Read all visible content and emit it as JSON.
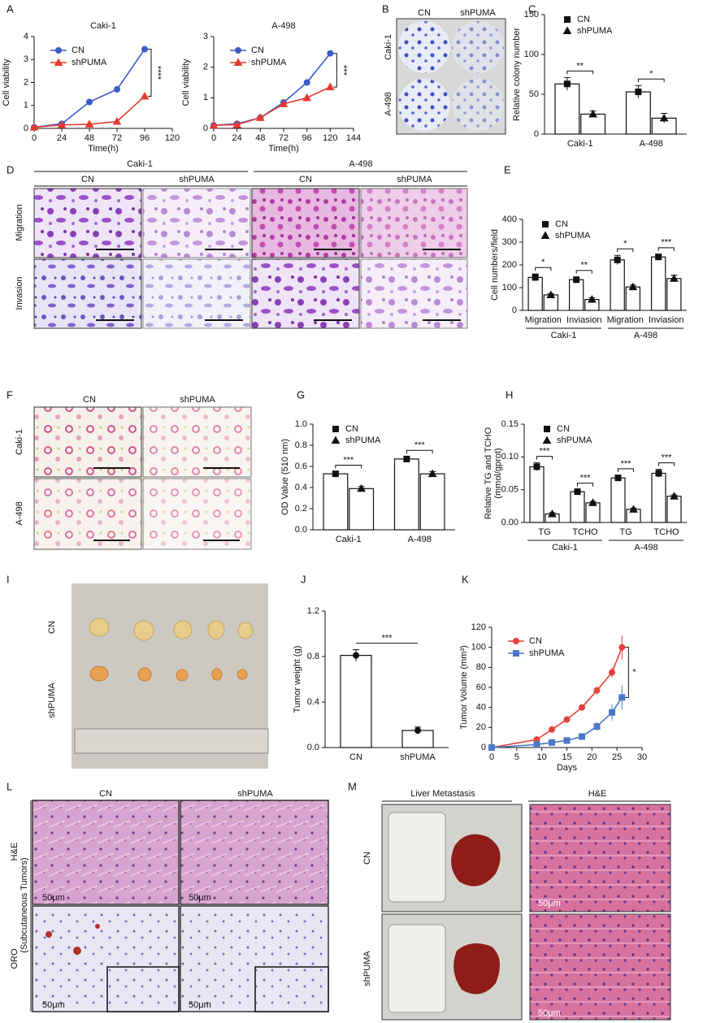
{
  "figure": {
    "panel_letters": [
      "A",
      "B",
      "C",
      "D",
      "E",
      "F",
      "G",
      "H",
      "I",
      "J",
      "K",
      "L",
      "M"
    ],
    "B": {
      "columns": [
        "CN",
        "shPUMA"
      ],
      "rows": [
        "Caki-1",
        "A-498"
      ]
    },
    "D": {
      "groups": [
        "Caki-1",
        "A-498"
      ],
      "columns": [
        "CN",
        "shPUMA",
        "CN",
        "shPUMA"
      ],
      "rows": [
        "Migration",
        "Invasion"
      ]
    },
    "F": {
      "columns": [
        "CN",
        "shPUMA"
      ],
      "rows": [
        "Caki-1",
        "A-498"
      ]
    },
    "I": {
      "rows": [
        "CN",
        "shPUMA"
      ]
    },
    "L": {
      "columns": [
        "CN",
        "shPUMA"
      ],
      "rows": [
        "H&E",
        "ORO"
      ],
      "side_label": "(Subcutaneous Tumors)",
      "scale_bars": [
        "50μm",
        "50μm",
        "50μm",
        "50μm"
      ]
    },
    "M": {
      "columns": [
        "Liver Metastasis",
        "H&E"
      ],
      "rows": [
        "CN",
        "shPUMA"
      ],
      "scale_bars": [
        "50μm",
        "50μm"
      ]
    }
  },
  "chart_data": [
    {
      "type": "line",
      "title": "Caki-1",
      "x_label": "Time(h)",
      "y_label": "Cell viability",
      "xlim": [
        0,
        120
      ],
      "xticks": [
        0,
        24,
        48,
        72,
        96,
        120
      ],
      "ylim": [
        0,
        4
      ],
      "yticks": [
        0,
        1,
        2,
        3,
        4
      ],
      "x": [
        0,
        24,
        48,
        72,
        96
      ],
      "series": [
        {
          "name": "CN",
          "color": "#3a5bc7",
          "marker": "circle",
          "values": [
            0.05,
            0.2,
            1.15,
            1.7,
            3.45
          ],
          "errors": [
            0.02,
            0.03,
            0.12,
            0.15,
            0.05
          ]
        },
        {
          "name": "shPUMA",
          "color": "#e53a2f",
          "marker": "triangle",
          "values": [
            0.05,
            0.15,
            0.18,
            0.3,
            1.4
          ],
          "errors": [
            0.02,
            0.02,
            0.03,
            0.05,
            0.05
          ]
        }
      ],
      "annotation": "****",
      "legend": "upper left"
    },
    {
      "type": "line",
      "title": "A-498",
      "x_label": "Time(h)",
      "y_label": "Cell viability",
      "xlim": [
        0,
        144
      ],
      "xticks": [
        0,
        24,
        48,
        72,
        96,
        120,
        144
      ],
      "ylim": [
        0,
        3
      ],
      "yticks": [
        0,
        1,
        2,
        3
      ],
      "x": [
        0,
        24,
        48,
        72,
        96,
        120
      ],
      "series": [
        {
          "name": "CN",
          "color": "#3a5bc7",
          "marker": "circle",
          "values": [
            0.1,
            0.15,
            0.35,
            0.85,
            1.5,
            2.45
          ],
          "errors": [
            0.02,
            0.03,
            0.04,
            0.05,
            0.05,
            0.08
          ]
        },
        {
          "name": "shPUMA",
          "color": "#e53a2f",
          "marker": "triangle",
          "values": [
            0.1,
            0.12,
            0.35,
            0.8,
            1.0,
            1.35
          ],
          "errors": [
            0.02,
            0.02,
            0.04,
            0.04,
            0.04,
            0.08
          ]
        }
      ],
      "annotation": "***",
      "legend": "upper left"
    },
    {
      "type": "bar",
      "y_label": "Relative colony number",
      "categories": [
        "Caki-1",
        "A-498"
      ],
      "ylim": [
        0,
        150
      ],
      "yticks": [
        0,
        50,
        100,
        150
      ],
      "series": [
        {
          "name": "CN",
          "color": "#ffffff",
          "marker": "square",
          "values": [
            63,
            53
          ],
          "errors": [
            8,
            8
          ]
        },
        {
          "name": "shPUMA",
          "color": "#ffffff",
          "marker": "triangle",
          "values": [
            25,
            20
          ],
          "errors": [
            4,
            6
          ]
        }
      ],
      "annotations": [
        "**",
        "*"
      ],
      "legend": "upper left"
    },
    {
      "type": "bar",
      "y_label": "Cell numbers/field",
      "categories": [
        "Migration",
        "Inviasion",
        "Migration",
        "Inviasion"
      ],
      "group_labels": [
        "Caki-1",
        "A-498"
      ],
      "ylim": [
        0,
        400
      ],
      "yticks": [
        0,
        100,
        200,
        300,
        400
      ],
      "series": [
        {
          "name": "CN",
          "color": "#ffffff",
          "marker": "square",
          "values": [
            145,
            135,
            222,
            235
          ],
          "errors": [
            15,
            12,
            20,
            12
          ]
        },
        {
          "name": "shPUMA",
          "color": "#ffffff",
          "marker": "triangle",
          "values": [
            68,
            48,
            103,
            140
          ],
          "errors": [
            5,
            8,
            8,
            15
          ]
        }
      ],
      "annotations": [
        "*",
        "**",
        "*",
        "***"
      ],
      "legend": "upper left"
    },
    {
      "type": "bar",
      "y_label": "OD Value (510 nm)",
      "categories": [
        "Caki-1",
        "A-498"
      ],
      "ylim": [
        0,
        1
      ],
      "yticks": [
        {
          "value": 0,
          "label": "0.0"
        },
        0.2,
        0.4,
        0.6,
        0.8,
        {
          "value": 1,
          "label": "1.0"
        }
      ],
      "series": [
        {
          "name": "CN",
          "color": "#ffffff",
          "marker": "square",
          "values": [
            0.53,
            0.67
          ],
          "errors": [
            0.02,
            0.02
          ]
        },
        {
          "name": "shPUMA",
          "color": "#ffffff",
          "marker": "triangle",
          "values": [
            0.39,
            0.53
          ],
          "errors": [
            0.02,
            0.02
          ]
        }
      ],
      "annotations": [
        "***",
        "***"
      ],
      "legend": "upper left"
    },
    {
      "type": "bar",
      "y_label": [
        "Relative TG and TCHO",
        "(mmol/gprot)"
      ],
      "categories": [
        "TG",
        "TCHO",
        "TG",
        "TCHO"
      ],
      "group_labels": [
        "Caki-1",
        "A-498"
      ],
      "ylim": [
        0,
        0.15
      ],
      "yticks": [
        {
          "value": 0,
          "label": "0.00"
        },
        0.05,
        {
          "value": 0.1,
          "label": "0.10"
        },
        0.15
      ],
      "series": [
        {
          "name": "CN",
          "color": "#ffffff",
          "marker": "square",
          "values": [
            0.085,
            0.047,
            0.068,
            0.075
          ],
          "errors": [
            0.006,
            0.003,
            0.004,
            0.006
          ]
        },
        {
          "name": "shPUMA",
          "color": "#ffffff",
          "marker": "triangle",
          "values": [
            0.013,
            0.03,
            0.02,
            0.04
          ],
          "errors": [
            0.002,
            0.002,
            0.002,
            0.002
          ]
        }
      ],
      "annotations": [
        "***",
        "***",
        "***",
        "***"
      ],
      "legend": "upper left"
    },
    {
      "type": "bar",
      "y_label": "Tumor weight (g)",
      "categories": [
        "CN",
        "shPUMA"
      ],
      "ylim": [
        0,
        1.2
      ],
      "yticks": [
        {
          "value": 0,
          "label": "0.0"
        },
        0.4,
        0.8,
        1.2
      ],
      "values": [
        0.81,
        0.15
      ],
      "errors": [
        0.05,
        0.03
      ],
      "color": "#ffffff",
      "annotation": "***"
    },
    {
      "type": "line",
      "x_label": "Days",
      "y_label": "Tumor Volume (mm³)",
      "xlim": [
        0,
        30
      ],
      "xticks": [
        0,
        5,
        10,
        15,
        20,
        25,
        30
      ],
      "ylim": [
        0,
        120
      ],
      "yticks": [
        0,
        20,
        40,
        60,
        80,
        100,
        120
      ],
      "x": [
        0,
        9,
        12,
        15,
        18,
        21,
        24,
        26
      ],
      "series": [
        {
          "name": "CN",
          "color": "#e8403a",
          "marker": "circle",
          "values": [
            0,
            8,
            18,
            28,
            40,
            57,
            75,
            100
          ],
          "errors": [
            0,
            1,
            2,
            2,
            3,
            4,
            5,
            12
          ]
        },
        {
          "name": "shPUMA",
          "color": "#4a78c8",
          "marker": "square",
          "values": [
            0,
            3,
            5,
            7,
            11,
            21,
            35,
            50
          ],
          "errors": [
            0,
            1,
            1,
            1,
            2,
            4,
            8,
            12
          ]
        }
      ],
      "annotation": "*",
      "legend": "upper left"
    }
  ]
}
